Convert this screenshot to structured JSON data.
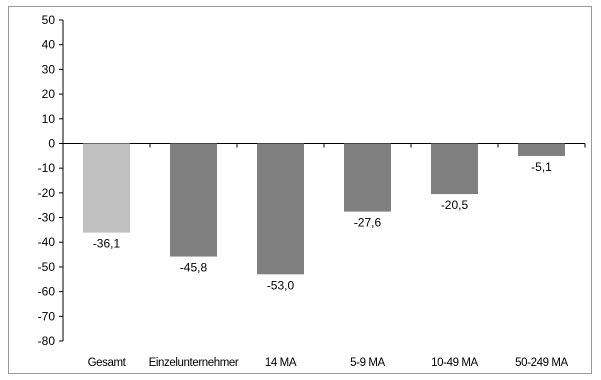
{
  "chart_data": {
    "type": "bar",
    "categories": [
      "Gesamt",
      "Einzelunternehmer",
      "14 MA",
      "5-9 MA",
      "10-49 MA",
      "50-249 MA"
    ],
    "values": [
      -36.1,
      -45.8,
      -53.0,
      -27.6,
      -20.5,
      -5.1
    ],
    "data_labels": [
      "-36,1",
      "-45,8",
      "-53,0",
      "-27,6",
      "-20,5",
      "-5,1"
    ],
    "bar_colors": [
      "#c0c0c0",
      "#808080",
      "#808080",
      "#808080",
      "#808080",
      "#808080"
    ],
    "ylim": [
      -80,
      50
    ],
    "yticks": [
      50,
      40,
      30,
      20,
      10,
      0,
      -10,
      -20,
      -30,
      -40,
      -50,
      -60,
      -70,
      -80
    ],
    "title": "",
    "xlabel": "",
    "ylabel": "",
    "grid": false,
    "legend": "none"
  }
}
